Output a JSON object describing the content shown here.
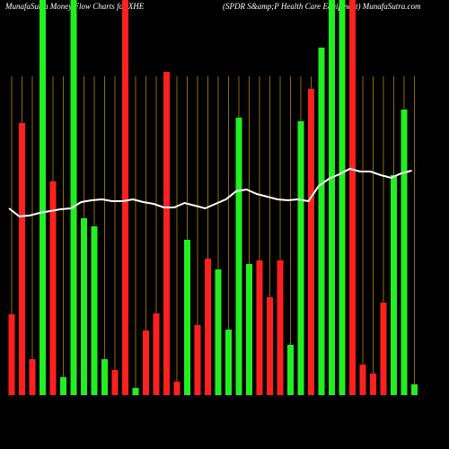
{
  "chart_data": {
    "type": "bar-line",
    "title": "MunafaSutra  Money  Flow  Charts for XHE",
    "subtitle": "(SPDR S&amp;P Health Care   Equipment)  MunafaSutra.com",
    "categories": [
      null,
      null,
      null,
      null,
      null,
      null,
      null,
      null,
      null,
      null,
      null,
      null,
      null,
      null,
      null,
      null,
      null,
      null,
      null,
      null,
      null,
      null,
      null,
      null,
      null,
      null,
      null,
      null,
      null,
      null,
      null,
      null,
      null,
      null,
      null,
      null,
      null,
      null,
      null,
      null
    ],
    "series": [
      {
        "type": "bar",
        "values": [
          90,
          303,
          40,
          440,
          238,
          20,
          440,
          197,
          188,
          40,
          28,
          440,
          8,
          72,
          91,
          360,
          15,
          173,
          78,
          152,
          140,
          73,
          309,
          146,
          150,
          109,
          150,
          56,
          305,
          341,
          387,
          440,
          440,
          440,
          34,
          24,
          103,
          245,
          318,
          12
        ],
        "colors": [
          "#ff2020",
          "#ff2020",
          "#ff2020",
          "#22ee22",
          "#ff2020",
          "#22ee22",
          "#22ee22",
          "#22ee22",
          "#22ee22",
          "#22ee22",
          "#ff2020",
          "#ff2020",
          "#22ee22",
          "#ff2020",
          "#ff2020",
          "#ff2020",
          "#ff2020",
          "#22ee22",
          "#ff2020",
          "#ff2020",
          "#22ee22",
          "#22ee22",
          "#22ee22",
          "#22ee22",
          "#ff2020",
          "#ff2020",
          "#ff2020",
          "#22ee22",
          "#22ee22",
          "#ff2020",
          "#22ee22",
          "#22ee22",
          "#22ee22",
          "#ff2020",
          "#ff2020",
          "#ff2020",
          "#ff2020",
          "#22ee22",
          "#22ee22",
          "#22ee22"
        ]
      },
      {
        "type": "line",
        "color": "#ffffff",
        "values": [
          208,
          199,
          200,
          203,
          205,
          207,
          208,
          215,
          217,
          218,
          216,
          216,
          218,
          215,
          213,
          209,
          209,
          214,
          211,
          208,
          213,
          218,
          227,
          229,
          224,
          221,
          218,
          217,
          218,
          216,
          233,
          241,
          246,
          252,
          249,
          249,
          245,
          242,
          247,
          250
        ]
      }
    ],
    "ylim": [
      0,
      440
    ],
    "grid_color": "#b8860b"
  }
}
